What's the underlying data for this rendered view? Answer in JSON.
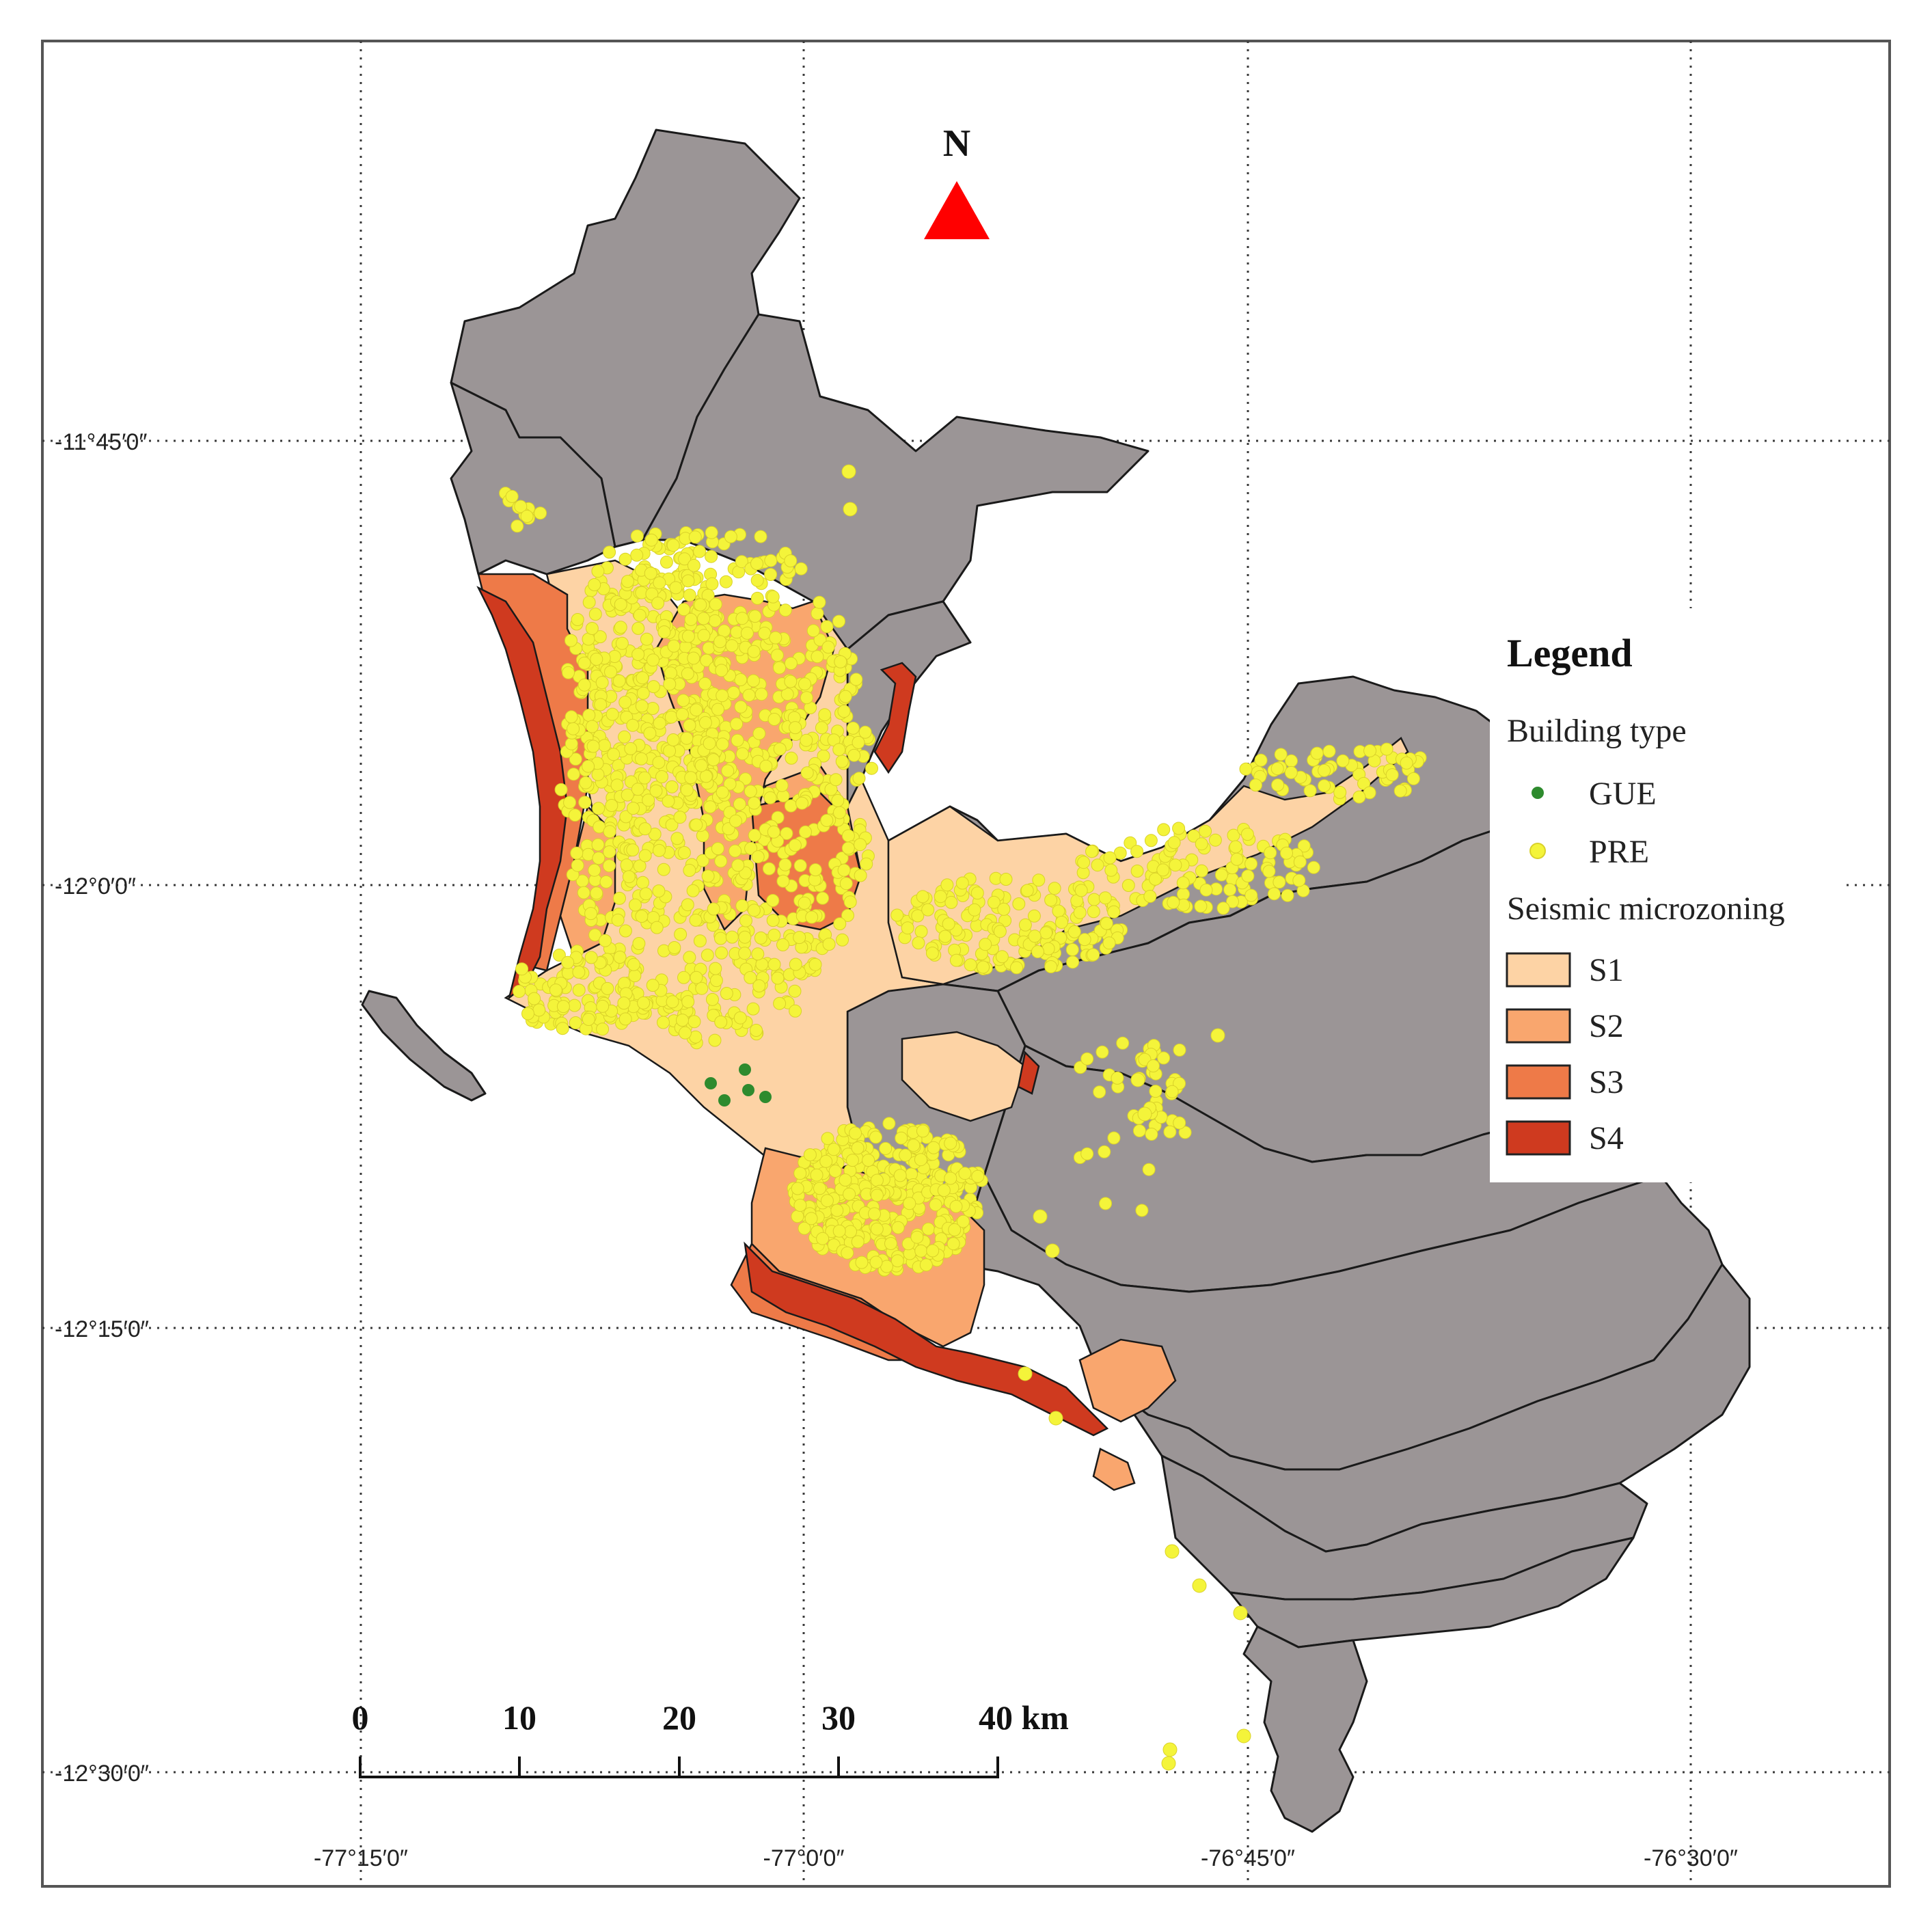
{
  "grid": {
    "lat_labels": [
      "-11°45′0″",
      "-12°0′0″",
      "-12°15′0″",
      "-12°30′0″"
    ],
    "lon_labels": [
      "-77°15′0″",
      "-77°0′0″",
      "-76°45′0″",
      "-76°30′0″"
    ]
  },
  "north_arrow": {
    "label": "N",
    "color": "#ff0000"
  },
  "scale_bar": {
    "ticks": [
      "0",
      "10",
      "20",
      "30",
      "40 km"
    ]
  },
  "legend": {
    "title": "Legend",
    "building_type": {
      "heading": "Building type",
      "items": [
        {
          "label": "GUE",
          "color": "#2e8b2e"
        },
        {
          "label": "PRE",
          "color": "#f4f43a"
        }
      ]
    },
    "seismic_microzoning": {
      "heading": "Seismic microzoning",
      "items": [
        {
          "label": "S1",
          "color": "#fdd3a5"
        },
        {
          "label": "S2",
          "color": "#f9a66e"
        },
        {
          "label": "S3",
          "color": "#ee7a48"
        },
        {
          "label": "S4",
          "color": "#cf3a1f"
        }
      ]
    }
  },
  "colors": {
    "district_fill": "#9b9596",
    "frame": "#555555"
  }
}
